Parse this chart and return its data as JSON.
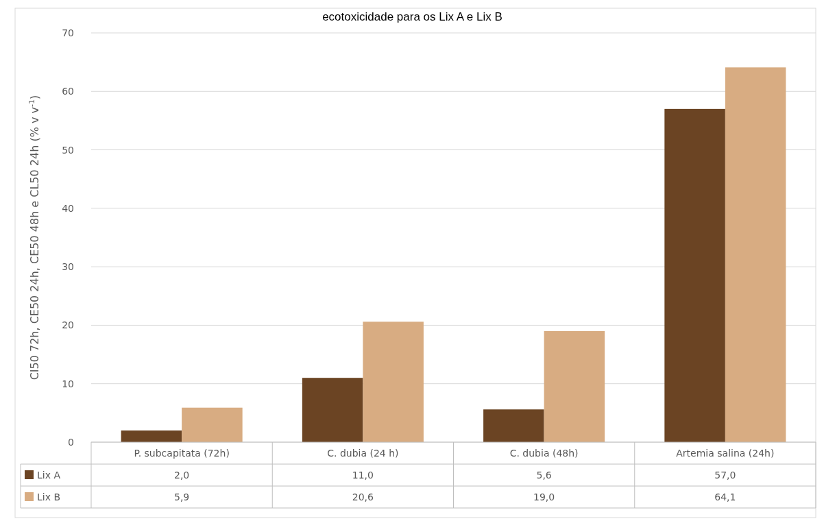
{
  "chart_data": {
    "type": "bar",
    "title": "ecotoxicidade para os Lix A e Lix B",
    "ylabel": "CI50 72h, CE50 24h, CE50 48h e CL50 24h (% v v$^{-1}$)",
    "categories": [
      "P. subcapitata (72h)",
      "C. dubia (24 h)",
      "C. dubia (48h)",
      "Artemia salina (24h)"
    ],
    "series": [
      {
        "name": "Lix A",
        "color": "#6b4423",
        "values": [
          2.0,
          11.0,
          5.6,
          57.0
        ],
        "value_labels": [
          "2,0",
          "11,0",
          "5,6",
          "57,0"
        ]
      },
      {
        "name": "Lix B",
        "color": "#d8ac82",
        "values": [
          5.9,
          20.6,
          19.0,
          64.1
        ],
        "value_labels": [
          "5,9",
          "20,6",
          "19,0",
          "64,1"
        ]
      }
    ],
    "ylim": [
      0,
      70
    ],
    "yticks": [
      0,
      10,
      20,
      30,
      40,
      50,
      60,
      70
    ],
    "grid": "y",
    "legend": "bottom"
  }
}
